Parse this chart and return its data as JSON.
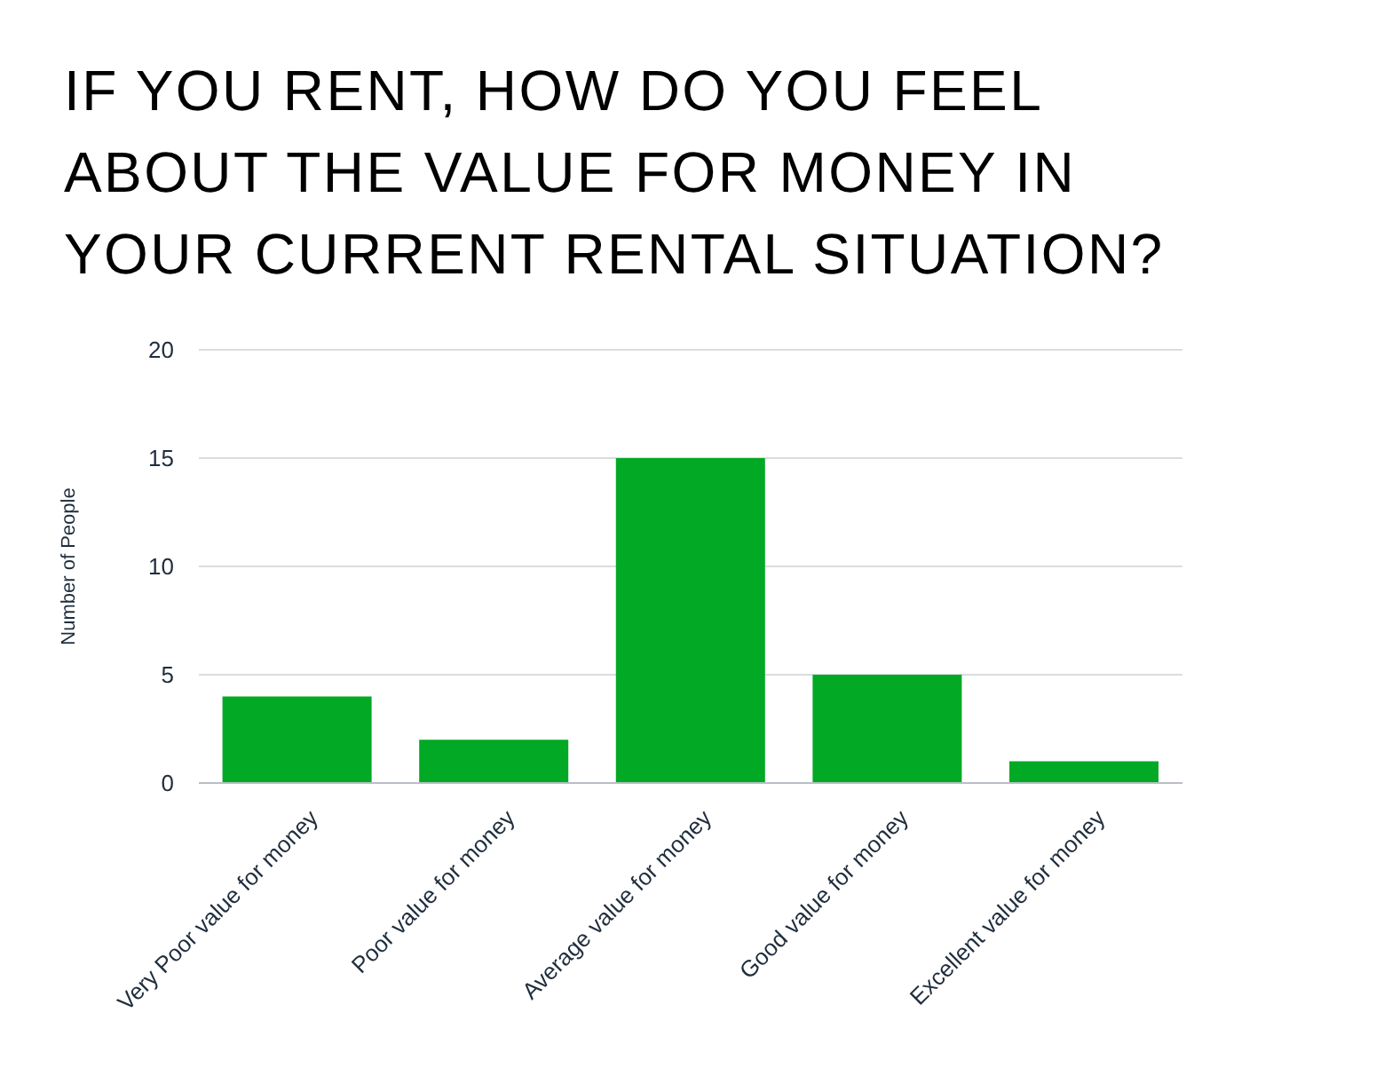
{
  "chart_data": {
    "type": "bar",
    "title": "IF YOU RENT, HOW DO YOU FEEL ABOUT THE VALUE FOR MONEY IN YOUR CURRENT RENTAL SITUATION?",
    "ylabel": "Number of People",
    "categories": [
      "Very Poor value for money",
      "Poor value for money",
      "Average value for money",
      "Good value for money",
      "Excellent value for money"
    ],
    "values": [
      4,
      2,
      15,
      5,
      1
    ],
    "color": "#02a924",
    "ylim": [
      0,
      20
    ],
    "yticks": [
      0,
      5,
      10,
      15,
      20
    ],
    "grid": "y"
  }
}
